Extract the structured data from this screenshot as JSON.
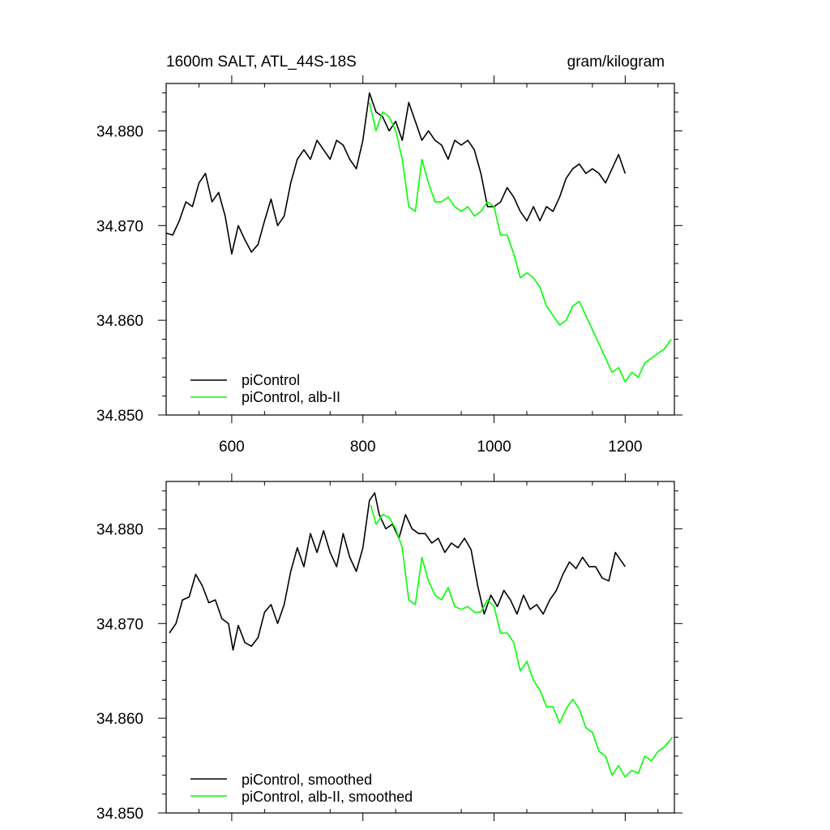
{
  "chart_data": [
    {
      "type": "line",
      "title_left": "1600m SALT, ATL_44S-18S",
      "title_right": "gram/kilogram",
      "xlabel": "",
      "ylabel": "",
      "xlim": [
        500,
        1275
      ],
      "ylim": [
        34.85,
        34.885
      ],
      "x_ticks": [
        600,
        800,
        1000,
        1200
      ],
      "x_tick_labels": [
        "600",
        "800",
        "1000",
        "1200"
      ],
      "y_ticks": [
        34.85,
        34.86,
        34.87,
        34.88
      ],
      "y_tick_labels": [
        "34.850",
        "34.860",
        "34.870",
        "34.880"
      ],
      "grid": false,
      "legend_position": "bottom-left",
      "series": [
        {
          "name": "piControl",
          "color": "#000000",
          "x": [
            500,
            510,
            520,
            530,
            540,
            550,
            560,
            570,
            580,
            590,
            600,
            610,
            620,
            630,
            640,
            650,
            660,
            670,
            680,
            690,
            700,
            710,
            720,
            730,
            740,
            750,
            760,
            770,
            780,
            790,
            800,
            810,
            820,
            830,
            840,
            850,
            860,
            870,
            880,
            890,
            900,
            910,
            920,
            930,
            940,
            950,
            960,
            970,
            980,
            990,
            1000,
            1010,
            1020,
            1030,
            1040,
            1050,
            1060,
            1070,
            1080,
            1090,
            1100,
            1110,
            1120,
            1130,
            1140,
            1150,
            1160,
            1170,
            1180,
            1190,
            1200
          ],
          "y": [
            34.8692,
            34.869,
            34.8705,
            34.8725,
            34.872,
            34.8745,
            34.8755,
            34.8725,
            34.8735,
            34.871,
            34.867,
            34.87,
            34.8685,
            34.8672,
            34.868,
            34.8705,
            34.8728,
            34.87,
            34.871,
            34.8745,
            34.877,
            34.878,
            34.877,
            34.879,
            34.878,
            34.877,
            34.879,
            34.8785,
            34.877,
            34.876,
            34.879,
            34.884,
            34.882,
            34.8815,
            34.88,
            34.881,
            34.879,
            34.883,
            34.881,
            34.879,
            34.88,
            34.879,
            34.8785,
            34.877,
            34.879,
            34.8785,
            34.879,
            34.878,
            34.8755,
            34.872,
            34.872,
            34.8725,
            34.874,
            34.873,
            34.8715,
            34.8705,
            34.872,
            34.8705,
            34.872,
            34.8715,
            34.873,
            34.875,
            34.876,
            34.8765,
            34.8755,
            34.876,
            34.8755,
            34.8745,
            34.876,
            34.8775,
            34.8755
          ]
        },
        {
          "name": "piControl, alb-II",
          "color": "#00ff00",
          "x": [
            810,
            820,
            830,
            840,
            850,
            860,
            870,
            880,
            890,
            900,
            910,
            920,
            930,
            940,
            950,
            960,
            970,
            980,
            990,
            1000,
            1010,
            1020,
            1030,
            1040,
            1050,
            1060,
            1070,
            1080,
            1090,
            1100,
            1110,
            1120,
            1130,
            1140,
            1150,
            1160,
            1170,
            1180,
            1190,
            1200,
            1210,
            1220,
            1230,
            1240,
            1250,
            1260,
            1270
          ],
          "y": [
            34.883,
            34.88,
            34.882,
            34.8815,
            34.88,
            34.877,
            34.872,
            34.8715,
            34.877,
            34.8745,
            34.8725,
            34.8725,
            34.873,
            34.872,
            34.8715,
            34.872,
            34.871,
            34.8715,
            34.8725,
            34.872,
            34.869,
            34.869,
            34.867,
            34.8645,
            34.865,
            34.8645,
            34.8635,
            34.8615,
            34.8605,
            34.8595,
            34.86,
            34.8615,
            34.862,
            34.8605,
            34.859,
            34.8575,
            34.856,
            34.8545,
            34.855,
            34.8535,
            34.8545,
            34.854,
            34.8555,
            34.856,
            34.8565,
            34.857,
            34.858
          ]
        }
      ]
    },
    {
      "type": "line",
      "title_left": "",
      "title_right": "",
      "xlabel": "",
      "ylabel": "",
      "xlim": [
        500,
        1275
      ],
      "ylim": [
        34.85,
        34.885
      ],
      "x_ticks": [
        600,
        800,
        1000,
        1200
      ],
      "x_tick_labels": [],
      "y_ticks": [
        34.85,
        34.86,
        34.87,
        34.88
      ],
      "y_tick_labels": [
        "34.850",
        "34.860",
        "34.870",
        "34.880"
      ],
      "grid": false,
      "legend_position": "bottom-left",
      "series": [
        {
          "name": "piControl, smoothed",
          "color": "#000000",
          "x": [
            505,
            515,
            525,
            535,
            545,
            555,
            565,
            575,
            585,
            595,
            602,
            610,
            620,
            630,
            640,
            650,
            660,
            670,
            680,
            690,
            700,
            710,
            720,
            730,
            740,
            750,
            760,
            770,
            780,
            790,
            800,
            810,
            818,
            825,
            835,
            845,
            855,
            865,
            875,
            885,
            895,
            905,
            915,
            925,
            935,
            945,
            955,
            965,
            975,
            985,
            995,
            1005,
            1015,
            1025,
            1035,
            1045,
            1055,
            1065,
            1075,
            1085,
            1095,
            1105,
            1115,
            1125,
            1135,
            1145,
            1155,
            1165,
            1175,
            1185,
            1200
          ],
          "y": [
            34.869,
            34.87,
            34.8725,
            34.8728,
            34.8752,
            34.874,
            34.8722,
            34.8725,
            34.8705,
            34.87,
            34.8672,
            34.8698,
            34.868,
            34.8676,
            34.8685,
            34.8712,
            34.872,
            34.87,
            34.872,
            34.8755,
            34.878,
            34.876,
            34.8795,
            34.8775,
            34.8798,
            34.8775,
            34.876,
            34.8795,
            34.877,
            34.8755,
            34.878,
            34.883,
            34.8838,
            34.8815,
            34.88,
            34.8805,
            34.879,
            34.8815,
            34.88,
            34.8795,
            34.8795,
            34.8785,
            34.879,
            34.8775,
            34.8785,
            34.878,
            34.879,
            34.8778,
            34.874,
            34.871,
            34.873,
            34.8718,
            34.8735,
            34.8725,
            34.871,
            34.873,
            34.8715,
            34.872,
            34.871,
            34.8725,
            34.8735,
            34.8752,
            34.8765,
            34.8758,
            34.877,
            34.876,
            34.876,
            34.8748,
            34.8745,
            34.8775,
            34.876
          ]
        },
        {
          "name": "piControl, alb-II, smoothed",
          "color": "#00ff00",
          "x": [
            812,
            820,
            830,
            840,
            850,
            860,
            870,
            880,
            890,
            900,
            910,
            920,
            930,
            940,
            950,
            960,
            970,
            980,
            990,
            1000,
            1010,
            1020,
            1030,
            1040,
            1050,
            1060,
            1070,
            1080,
            1090,
            1100,
            1110,
            1120,
            1130,
            1140,
            1150,
            1160,
            1170,
            1180,
            1190,
            1200,
            1210,
            1220,
            1230,
            1240,
            1250,
            1260,
            1272
          ],
          "y": [
            34.8825,
            34.8805,
            34.8815,
            34.8812,
            34.88,
            34.878,
            34.8725,
            34.872,
            34.877,
            34.8745,
            34.873,
            34.8725,
            34.8738,
            34.8718,
            34.8715,
            34.8718,
            34.8712,
            34.8712,
            34.8725,
            34.8718,
            34.869,
            34.869,
            34.868,
            34.865,
            34.866,
            34.864,
            34.863,
            34.8612,
            34.8612,
            34.8595,
            34.861,
            34.862,
            34.861,
            34.859,
            34.8585,
            34.8565,
            34.856,
            34.854,
            34.855,
            34.8538,
            34.8545,
            34.8542,
            34.856,
            34.8555,
            34.8565,
            34.857,
            34.858
          ]
        }
      ]
    }
  ]
}
